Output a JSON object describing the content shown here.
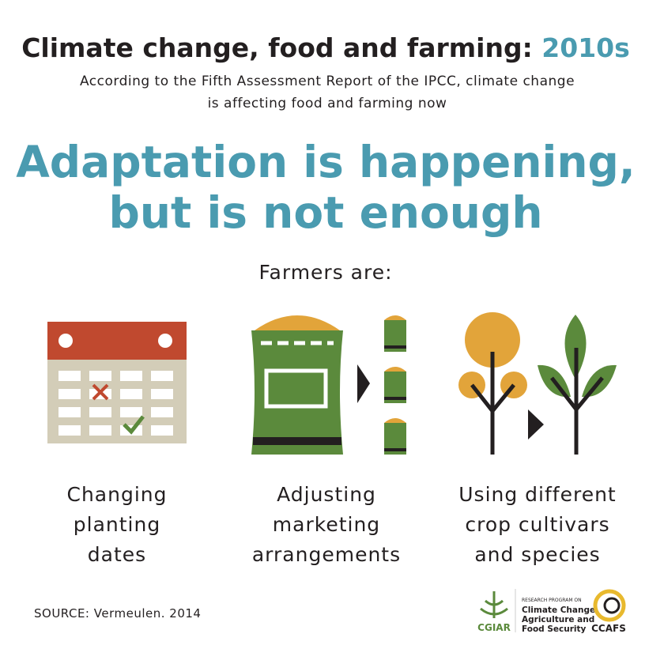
{
  "header": {
    "title": "Climate change, food and farming:",
    "title_highlight": "2010s",
    "subtitle_lines": [
      "According to the Fifth Assessment Report of the IPCC, climate change",
      "is affecting food and farming now"
    ]
  },
  "headline_lines": [
    "Adaptation is happening,",
    "but is not enough"
  ],
  "intro": "Farmers are:",
  "items": [
    {
      "label_lines": [
        "Changing",
        "planting",
        "dates"
      ]
    },
    {
      "label_lines": [
        "Adjusting",
        "marketing",
        "arrangements"
      ]
    },
    {
      "label_lines": [
        "Using different",
        "crop cultivars",
        "and species"
      ]
    }
  ],
  "source": "SOURCE: Vermeulen. 2014",
  "logos": {
    "cgiar": "CGIAR",
    "program_kicker": "RESEARCH PROGRAM ON",
    "program_lines": [
      "Climate Change,",
      "Agriculture and",
      "Food Security"
    ],
    "ccafs": "CCAFS"
  }
}
